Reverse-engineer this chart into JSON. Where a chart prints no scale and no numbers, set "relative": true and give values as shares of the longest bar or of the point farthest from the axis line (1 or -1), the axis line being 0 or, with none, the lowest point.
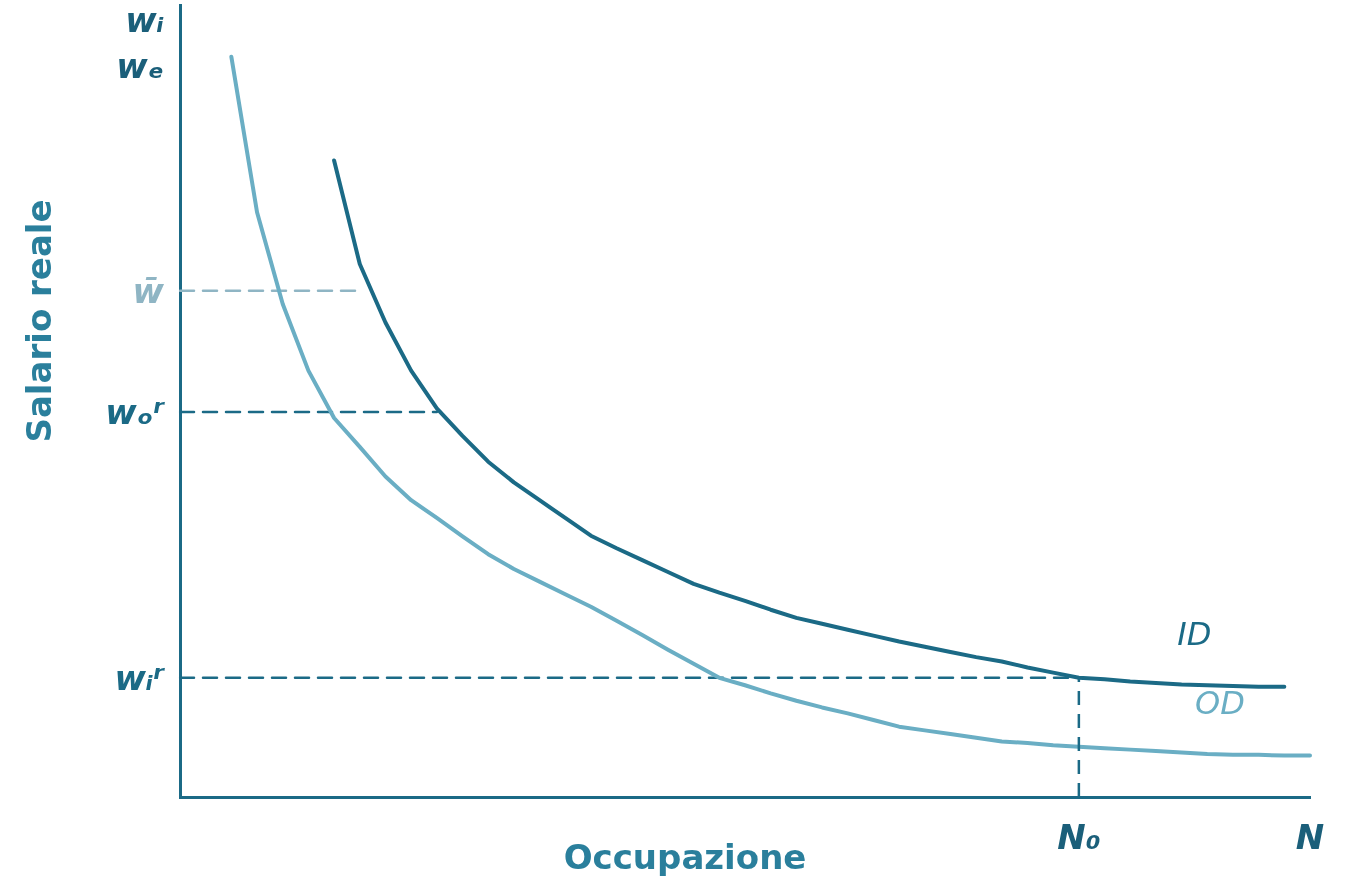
{
  "chart_data": {
    "type": "line",
    "relative": true,
    "xlabel": "Occupazione",
    "ylabel": "Salario reale",
    "grid": false,
    "legend": false,
    "marker": "none",
    "annotations": [
      "wᵢ",
      "wₑ"
    ],
    "ref_lines": [
      {
        "axis": "x",
        "value": "N₀",
        "color": "#1b6a86",
        "line_style": "dashed"
      }
    ],
    "categories": [
      null,
      null,
      null,
      null,
      null,
      null,
      null,
      null,
      null,
      null,
      null,
      null,
      null,
      null,
      null,
      null,
      null,
      null,
      null,
      null,
      null,
      null,
      null,
      null,
      null,
      null,
      null,
      null,
      null,
      null,
      null,
      null,
      null,
      null,
      null,
      "N₀",
      null,
      null,
      null,
      null,
      null,
      null,
      null,
      null,
      "N"
    ],
    "series": [
      {
        "name": "ID",
        "color": "#1b6a86",
        "line_style": "solid",
        "values": [
          null,
          null,
          null,
          null,
          null,
          null,
          0.86,
          0.72,
          0.641,
          0.576,
          0.525,
          0.488,
          0.453,
          0.425,
          0.401,
          0.377,
          0.353,
          0.336,
          0.32,
          0.304,
          0.288,
          0.276,
          0.265,
          0.253,
          0.242,
          0.234,
          0.226,
          0.218,
          0.21,
          0.203,
          0.196,
          0.189,
          0.183,
          0.175,
          0.168,
          0.161,
          0.159,
          0.156,
          0.154,
          0.152,
          0.151,
          0.15,
          0.149,
          0.149,
          null
        ]
      },
      {
        "name": "OD",
        "color": "#6aaec4",
        "line_style": "solid",
        "values": [
          null,
          null,
          1,
          0.79,
          0.666,
          0.576,
          0.512,
          0.473,
          0.433,
          0.401,
          0.377,
          0.352,
          0.328,
          0.308,
          0.291,
          0.274,
          0.257,
          0.238,
          0.219,
          0.199,
          0.18,
          0.161,
          0.151,
          0.14,
          0.13,
          0.121,
          0.113,
          0.104,
          0.095,
          0.09,
          0.085,
          0.08,
          0.075,
          0.073,
          0.07,
          0.068,
          0.066,
          0.064,
          0.062,
          0.06,
          0.058,
          0.057,
          0.057,
          0.056,
          0.056
        ]
      },
      {
        "name": "w̄",
        "color": "#8fb5c4",
        "line_style": "dashed",
        "values": [
          0.684,
          0.684,
          0.684,
          0.684,
          0.684,
          0.684,
          0.684,
          0.684,
          null,
          null,
          null,
          null,
          null,
          null,
          null,
          null,
          null,
          null,
          null,
          null,
          null,
          null,
          null,
          null,
          null,
          null,
          null,
          null,
          null,
          null,
          null,
          null,
          null,
          null,
          null,
          null,
          null,
          null,
          null,
          null,
          null,
          null,
          null,
          null,
          null
        ]
      },
      {
        "name": "wₒʳ",
        "color": "#1b6a86",
        "line_style": "dashed",
        "values": [
          0.52,
          0.52,
          0.52,
          0.52,
          0.52,
          0.52,
          0.52,
          0.52,
          0.52,
          0.52,
          0.52,
          null,
          null,
          null,
          null,
          null,
          null,
          null,
          null,
          null,
          null,
          null,
          null,
          null,
          null,
          null,
          null,
          null,
          null,
          null,
          null,
          null,
          null,
          null,
          null,
          null,
          null,
          null,
          null,
          null,
          null,
          null,
          null,
          null,
          null
        ]
      },
      {
        "name": "wᵢʳ",
        "color": "#1b6a86",
        "line_style": "dashed",
        "values": [
          0.161,
          0.161,
          0.161,
          0.161,
          0.161,
          0.161,
          0.161,
          0.161,
          0.161,
          0.161,
          0.161,
          0.161,
          0.161,
          0.161,
          0.161,
          0.161,
          0.161,
          0.161,
          0.161,
          0.161,
          0.161,
          0.161,
          0.161,
          0.161,
          0.161,
          0.161,
          0.161,
          0.161,
          0.161,
          0.161,
          0.161,
          0.161,
          0.161,
          0.161,
          0.161,
          0.161,
          null,
          null,
          null,
          null,
          null,
          null,
          null,
          null,
          null
        ]
      }
    ]
  }
}
